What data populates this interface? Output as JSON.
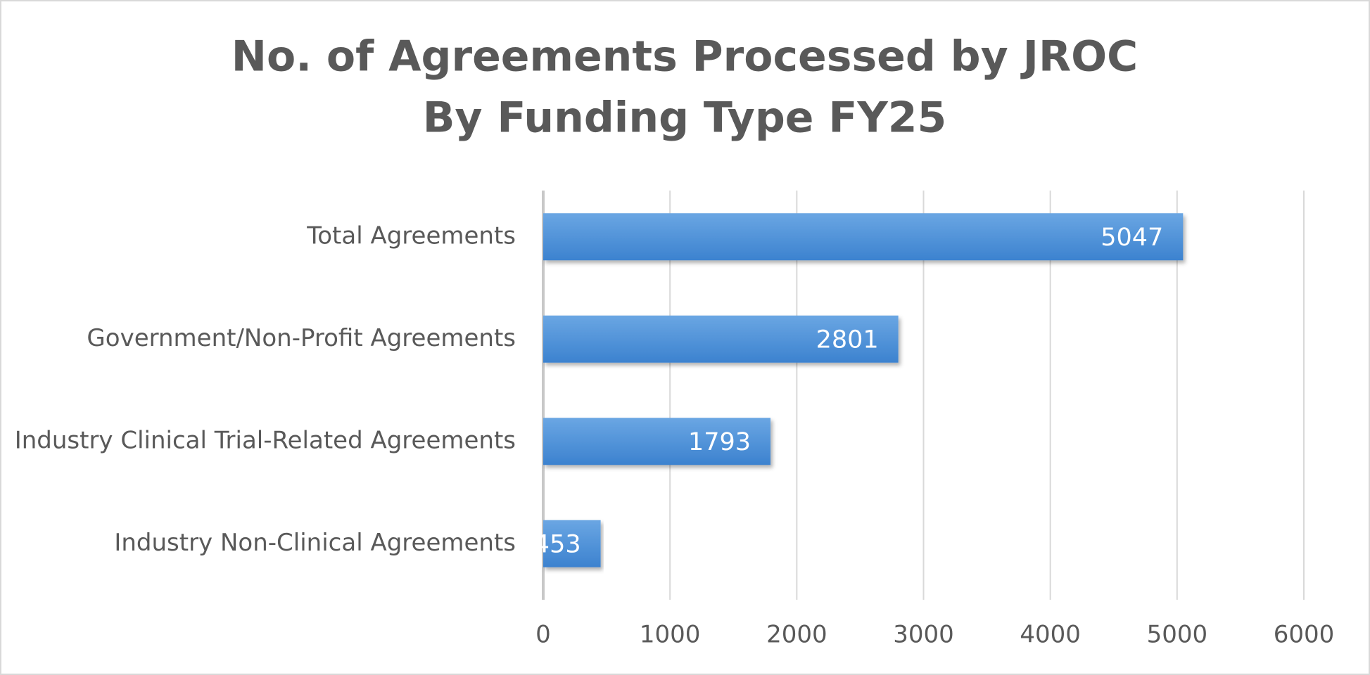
{
  "chart_data": {
    "type": "bar",
    "orientation": "horizontal",
    "title": [
      "No. of Agreements Processed by JROC",
      "By Funding Type FY25"
    ],
    "categories": [
      "Total Agreements",
      "Government/Non-Profit Agreements",
      "Industry Clinical Trial-Related Agreements",
      "Industry Non-Clinical Agreements"
    ],
    "values": [
      5047,
      2801,
      1793,
      453
    ],
    "color": "#4a90d9",
    "xlim": [
      0,
      6000
    ],
    "xticks": [
      0,
      1000,
      2000,
      3000,
      4000,
      5000,
      6000
    ],
    "grid": true
  }
}
